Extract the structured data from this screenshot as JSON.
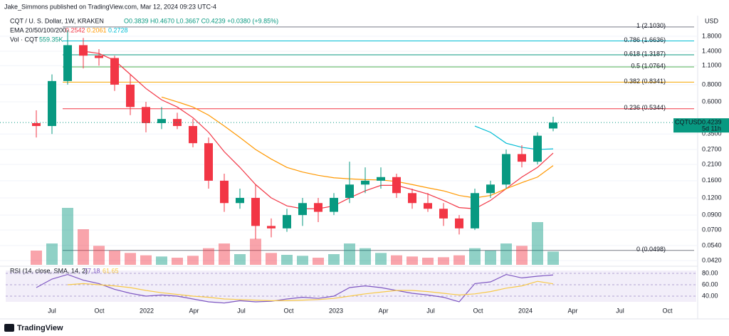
{
  "header": {
    "publisher": "Jake_Simmons published on TradingView.com, Mar 12, 2024 09:23 UTC-4",
    "symbol": "CQT / U. S. Dollar, 1W, KRAKEN",
    "ohlc": "O0.3839 H0.4670 L0.3667 C0.4239 +0.0380 (+9.85%)",
    "ema_label": "EMA 20/50/100/200",
    "ema_values": [
      "0.2542",
      "0.2061",
      "0.2728"
    ],
    "vol_label": "Vol · CQT",
    "vol_value": "559.35K",
    "rsi_label": "RSI (14, close, SMA, 14, 2)",
    "rsi_value": "77.18",
    "rsi_sma": "61.65",
    "logo": "TradingView"
  },
  "price_tag": {
    "symbol": "CQTUSD",
    "price": "0.4239",
    "countdown": "5d 11h"
  },
  "chart_data": {
    "type": "candlestick",
    "currency": "USD",
    "log_scale": true,
    "x": [
      "2021-06",
      "2021-07",
      "2021-08",
      "2021-09",
      "2021-10",
      "2021-11",
      "2021-12",
      "2022-01",
      "2022-02",
      "2022-03",
      "2022-04",
      "2022-05",
      "2022-06",
      "2022-07",
      "2022-08",
      "2022-09",
      "2022-10",
      "2022-11",
      "2022-12",
      "2023-01",
      "2023-02",
      "2023-03",
      "2023-04",
      "2023-05",
      "2023-06",
      "2023-07",
      "2023-08",
      "2023-09",
      "2023-10",
      "2023-11",
      "2023-12",
      "2024-01",
      "2024-02",
      "2024-03"
    ],
    "open": [
      0.42,
      0.4,
      0.85,
      1.55,
      1.3,
      1.25,
      0.8,
      0.55,
      0.42,
      0.45,
      0.4,
      0.3,
      0.16,
      0.11,
      0.12,
      0.075,
      0.072,
      0.09,
      0.11,
      0.095,
      0.12,
      0.15,
      0.16,
      0.17,
      0.13,
      0.11,
      0.1,
      0.085,
      0.072,
      0.13,
      0.15,
      0.25,
      0.22,
      0.3839
    ],
    "high": [
      0.52,
      0.95,
      2.0,
      1.75,
      1.45,
      1.3,
      0.95,
      0.6,
      0.55,
      0.5,
      0.45,
      0.33,
      0.18,
      0.14,
      0.15,
      0.085,
      0.1,
      0.12,
      0.12,
      0.13,
      0.22,
      0.2,
      0.2,
      0.18,
      0.14,
      0.13,
      0.11,
      0.09,
      0.14,
      0.16,
      0.27,
      0.29,
      0.36,
      0.467
    ],
    "low": [
      0.33,
      0.35,
      0.8,
      1.05,
      1.1,
      0.72,
      0.48,
      0.36,
      0.38,
      0.38,
      0.28,
      0.14,
      0.095,
      0.1,
      0.06,
      0.062,
      0.068,
      0.075,
      0.08,
      0.09,
      0.11,
      0.13,
      0.14,
      0.12,
      0.1,
      0.095,
      0.075,
      0.065,
      0.07,
      0.12,
      0.14,
      0.2,
      0.21,
      0.3667
    ],
    "close": [
      0.4,
      0.85,
      1.55,
      1.3,
      1.25,
      0.8,
      0.55,
      0.42,
      0.45,
      0.4,
      0.3,
      0.16,
      0.11,
      0.12,
      0.075,
      0.072,
      0.09,
      0.11,
      0.095,
      0.12,
      0.15,
      0.16,
      0.17,
      0.13,
      0.11,
      0.1,
      0.085,
      0.072,
      0.13,
      0.15,
      0.25,
      0.22,
      0.34,
      0.4239
    ],
    "volume": [
      600,
      900,
      2400,
      1500,
      800,
      600,
      500,
      400,
      350,
      300,
      380,
      700,
      900,
      450,
      1100,
      500,
      420,
      380,
      300,
      450,
      900,
      700,
      500,
      400,
      350,
      300,
      320,
      400,
      700,
      600,
      900,
      800,
      1800,
      559.35
    ],
    "series": [
      {
        "name": "EMA 20",
        "color": "#f23645",
        "values": [
          null,
          null,
          null,
          1.4,
          1.35,
          1.2,
          0.95,
          0.75,
          0.62,
          0.55,
          0.46,
          0.36,
          0.26,
          0.2,
          0.15,
          0.12,
          0.105,
          0.1,
          0.1,
          0.105,
          0.12,
          0.135,
          0.148,
          0.148,
          0.138,
          0.128,
          0.115,
          0.102,
          0.1,
          0.115,
          0.14,
          0.17,
          0.2,
          0.2542
        ]
      },
      {
        "name": "EMA 50",
        "color": "#ff9800",
        "values": [
          null,
          null,
          null,
          null,
          null,
          null,
          null,
          null,
          0.65,
          0.6,
          0.55,
          0.48,
          0.4,
          0.33,
          0.27,
          0.23,
          0.2,
          0.185,
          0.175,
          0.168,
          0.165,
          0.163,
          0.162,
          0.158,
          0.15,
          0.142,
          0.135,
          0.125,
          0.12,
          0.125,
          0.14,
          0.155,
          0.17,
          0.2061
        ]
      },
      {
        "name": "EMA 100",
        "color": "#00bcd4",
        "values": [
          null,
          null,
          null,
          null,
          null,
          null,
          null,
          null,
          null,
          null,
          null,
          null,
          null,
          null,
          null,
          null,
          null,
          null,
          null,
          null,
          null,
          null,
          null,
          null,
          null,
          null,
          null,
          null,
          0.4,
          0.36,
          0.3,
          0.28,
          0.27,
          0.2728
        ]
      }
    ],
    "rsi": [
      55,
      70,
      78,
      68,
      62,
      52,
      45,
      40,
      42,
      40,
      35,
      30,
      28,
      32,
      30,
      31,
      35,
      38,
      36,
      40,
      55,
      58,
      55,
      50,
      45,
      42,
      38,
      30,
      62,
      65,
      78,
      72,
      75,
      77.18
    ],
    "rsi_sma": [
      null,
      null,
      60,
      62,
      60,
      58,
      55,
      50,
      46,
      43,
      40,
      38,
      35,
      34,
      33,
      32,
      32,
      33,
      34,
      36,
      40,
      44,
      47,
      50,
      50,
      48,
      45,
      42,
      44,
      48,
      54,
      58,
      66,
      61.65
    ],
    "rsi_yticks": [
      {
        "value": 80,
        "label": "80.00"
      },
      {
        "value": 60,
        "label": "60.00"
      },
      {
        "value": 40,
        "label": "40.00"
      }
    ],
    "ylim": [
      0.0391,
      2.31
    ],
    "yticks": [
      {
        "value": 1.8,
        "label": "1.8000"
      },
      {
        "value": 1.4,
        "label": "1.4000"
      },
      {
        "value": 1.1,
        "label": "1.1000"
      },
      {
        "value": 0.8,
        "label": "0.8000"
      },
      {
        "value": 0.6,
        "label": "0.6000"
      },
      {
        "value": 0.35,
        "label": "0.3500"
      },
      {
        "value": 0.27,
        "label": "0.2700"
      },
      {
        "value": 0.21,
        "label": "0.2100"
      },
      {
        "value": 0.16,
        "label": "0.1600"
      },
      {
        "value": 0.12,
        "label": "0.1200"
      },
      {
        "value": 0.09,
        "label": "0.0900"
      },
      {
        "value": 0.07,
        "label": "0.0700"
      },
      {
        "value": 0.054,
        "label": "0.0540"
      },
      {
        "value": 0.042,
        "label": "0.0420"
      }
    ],
    "fib_levels": [
      {
        "value": 2.103,
        "label": "1 (2.1030)",
        "color": "#787b86"
      },
      {
        "value": 1.6636,
        "label": "0.786 (1.6636)",
        "color": "#00bcd4"
      },
      {
        "value": 1.3187,
        "label": "0.618 (1.3187)",
        "color": "#089981"
      },
      {
        "value": 1.0764,
        "label": "0.5 (1.0764)",
        "color": "#4caf50"
      },
      {
        "value": 0.8341,
        "label": "0.382 (0.8341)",
        "color": "#f7a600"
      },
      {
        "value": 0.5344,
        "label": "0.236 (0.5344)",
        "color": "#f23645"
      },
      {
        "value": 0.0498,
        "label": "0 (0.0498)",
        "color": "#787b86"
      }
    ],
    "time_labels": [
      "Jul",
      "Oct",
      "2022",
      "Apr",
      "Jul",
      "Oct",
      "2023",
      "Apr",
      "Jul",
      "Oct",
      "2024",
      "Apr",
      "Jul",
      "Oct"
    ]
  }
}
